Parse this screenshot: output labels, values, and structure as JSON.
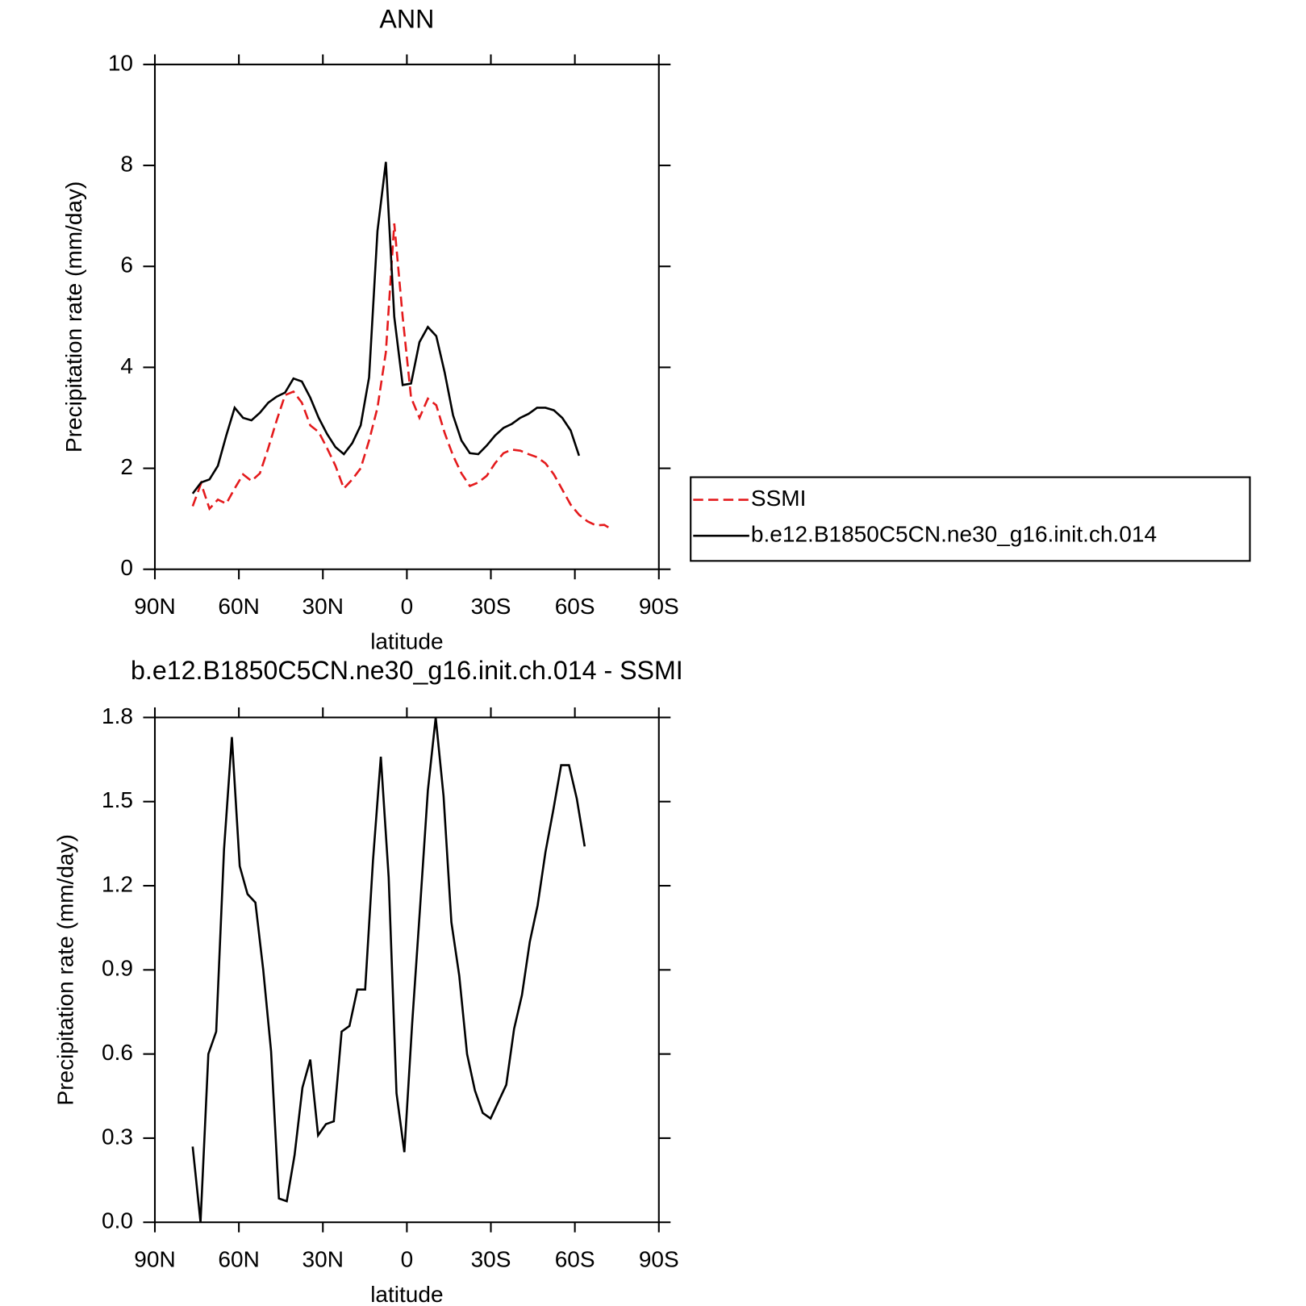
{
  "chart_data": [
    {
      "type": "line",
      "title": "ANN",
      "x_label": "latitude",
      "y_label": "Precipitation rate (mm/day)",
      "x": [
        76.5,
        73.5,
        70.5,
        67.5,
        64.5,
        61.5,
        58.5,
        55.5,
        52.5,
        49.5,
        46.5,
        43.5,
        40.5,
        37.5,
        34.5,
        31.5,
        28.5,
        25.5,
        22.5,
        19.5,
        16.5,
        13.5,
        10.5,
        7.5,
        4.5,
        1.5,
        -1.5,
        -4.5,
        -7.5,
        -10.5,
        -13.5,
        -16.5,
        -19.5,
        -22.5,
        -25.5,
        -28.5,
        -31.5,
        -34.5,
        -37.5,
        -40.5,
        -43.5,
        -46.5,
        -49.5,
        -52.5,
        -55.5,
        -58.5,
        -61.5,
        -64.5,
        -67.5,
        -70.5,
        -73.5
      ],
      "series": [
        {
          "name": "SSMI",
          "color": "#e41a1c",
          "dashed": true,
          "values": [
            1.25,
            1.7,
            1.2,
            1.38,
            1.3,
            1.6,
            1.88,
            1.75,
            1.9,
            2.4,
            2.95,
            3.45,
            3.52,
            3.3,
            2.85,
            2.72,
            2.4,
            2.05,
            1.6,
            1.78,
            2.0,
            2.55,
            3.2,
            4.3,
            6.85,
            5.0,
            3.4,
            3.0,
            3.38,
            3.25,
            2.7,
            2.25,
            1.9,
            1.65,
            1.72,
            1.85,
            2.1,
            2.3,
            2.37,
            2.35,
            2.28,
            2.22,
            2.1,
            1.88,
            1.58,
            1.28,
            1.08,
            0.95,
            0.87,
            0.88,
            0.78
          ]
        },
        {
          "name": "b.e12.B1850C5CN.ne30_g16.init.ch.014",
          "color": "#000000",
          "dashed": false,
          "values": [
            1.5,
            1.72,
            1.78,
            2.05,
            2.65,
            3.2,
            3.0,
            2.95,
            3.1,
            3.3,
            3.42,
            3.5,
            3.78,
            3.72,
            3.4,
            3.0,
            2.68,
            2.42,
            2.28,
            2.5,
            2.85,
            3.8,
            6.7,
            8.07,
            5.0,
            3.65,
            3.68,
            4.5,
            4.8,
            4.62,
            3.9,
            3.05,
            2.55,
            2.3,
            2.28,
            2.45,
            2.65,
            2.8,
            2.88,
            3.0,
            3.08,
            3.2,
            3.2,
            3.15,
            3.0,
            2.75,
            2.25,
            null,
            null,
            null,
            null
          ]
        }
      ],
      "xlim": [
        90,
        -90
      ],
      "xticks": [
        {
          "value": 90,
          "label": "90N"
        },
        {
          "value": 60,
          "label": "60N"
        },
        {
          "value": 30,
          "label": "30N"
        },
        0,
        {
          "value": -30,
          "label": "30S"
        },
        {
          "value": -60,
          "label": "60S"
        },
        {
          "value": -90,
          "label": "90S"
        }
      ],
      "ylim": [
        0,
        10
      ],
      "yticks": [
        0,
        2,
        4,
        6,
        8,
        10
      ],
      "legend": "right"
    },
    {
      "type": "line",
      "title": "b.e12.B1850C5CN.ne30_g16.init.ch.014 - SSMI",
      "x_label": "latitude",
      "y_label": "Precipitation rate (mm/day)",
      "x": [
        76.5,
        73.7,
        70.9,
        68.1,
        65.3,
        62.5,
        59.7,
        56.9,
        54.1,
        51.3,
        48.5,
        45.7,
        42.9,
        40.1,
        37.3,
        34.5,
        31.7,
        28.9,
        26.1,
        23.3,
        20.5,
        17.7,
        14.9,
        12.1,
        9.3,
        6.5,
        3.7,
        0.9,
        -1.9,
        -4.7,
        -7.5,
        -10.3,
        -13.1,
        -15.9,
        -18.7,
        -21.5,
        -24.3,
        -27.1,
        -29.9,
        -32.7,
        -35.5,
        -38.3,
        -41.1,
        -43.9,
        -46.7,
        -49.5,
        -52.3,
        -55.1,
        -57.9,
        -60.7,
        -63.5
      ],
      "values": [
        0.27,
        0.0,
        0.6,
        0.68,
        1.33,
        1.73,
        1.27,
        1.17,
        1.14,
        0.9,
        0.61,
        0.085,
        0.075,
        0.24,
        0.48,
        0.58,
        0.31,
        0.35,
        0.36,
        0.68,
        0.7,
        0.83,
        0.83,
        1.29,
        1.66,
        1.23,
        0.46,
        0.25,
        0.71,
        1.12,
        1.54,
        1.8,
        1.52,
        1.07,
        0.88,
        0.6,
        0.47,
        0.39,
        0.37,
        0.43,
        0.49,
        0.69,
        0.81,
        1.0,
        1.13,
        1.32,
        1.47,
        1.63,
        1.63,
        1.51,
        1.34
      ],
      "color": "#000000",
      "xlim": [
        90,
        -90
      ],
      "xticks": [
        {
          "value": 90,
          "label": "90N"
        },
        {
          "value": 60,
          "label": "60N"
        },
        {
          "value": 30,
          "label": "30N"
        },
        0,
        {
          "value": -30,
          "label": "30S"
        },
        {
          "value": -60,
          "label": "60S"
        },
        {
          "value": -90,
          "label": "90S"
        }
      ],
      "ylim": [
        0,
        1.8
      ],
      "yticks": [
        {
          "value": 0,
          "label": "0.0"
        },
        0.3,
        0.6,
        0.9,
        1.2,
        1.5,
        1.8
      ]
    }
  ]
}
